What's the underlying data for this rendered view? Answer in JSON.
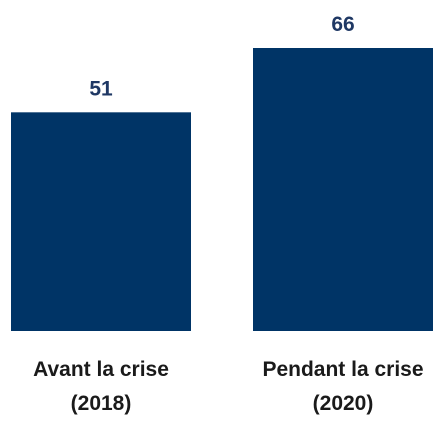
{
  "chart_data": {
    "type": "bar",
    "categories": [
      [
        "Avant la crise",
        "(2018)"
      ],
      [
        "Pendant la crise",
        "(2020)"
      ]
    ],
    "values": [
      51,
      66
    ],
    "title": "",
    "xlabel": "",
    "ylabel": "",
    "ylim": [
      0,
      66
    ],
    "grid": false,
    "legend": "none",
    "colors": {
      "bar": "#003466",
      "value_label": "#1f3864",
      "category_label": "#1a1a1a"
    }
  }
}
